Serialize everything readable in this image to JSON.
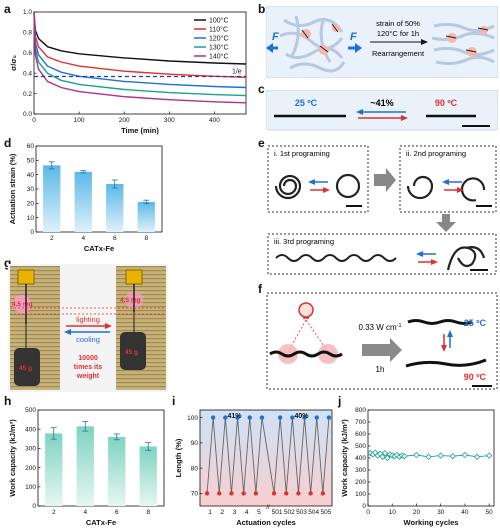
{
  "panel_labels": {
    "a": "a",
    "b": "b",
    "c": "c",
    "d": "d",
    "e": "e",
    "f": "f",
    "g": "g",
    "h": "h",
    "i": "i",
    "j": "j"
  },
  "panel_b": {
    "arrow_left": "F",
    "arrow_right": "F",
    "condition_line1": "strain of 50%",
    "condition_line2": "120°C for 1h",
    "condition_line3": "Rearrangement"
  },
  "panel_c": {
    "temp_left": "25 ºC",
    "percent": "~41%",
    "temp_right": "90 ºC"
  },
  "panel_e": {
    "step1": "i. 1st programing",
    "step2": "ii. 2nd programing",
    "step3": "iii. 3rd programing"
  },
  "panel_f": {
    "intensity": "0.33 W cm",
    "intensity_sup": "-1",
    "time": "1h",
    "temp_top": "25 ºC",
    "temp_bottom": "90 ºC"
  },
  "panel_g": {
    "mass_left": "4.5 mg",
    "mass_right": "4.5 mg",
    "lighting": "lighting",
    "cooling": "cooling",
    "weight_note1": "10000",
    "weight_note2": "times its",
    "weight_note3": "weight",
    "weight_left": "45 g",
    "weight_right": "45 g"
  },
  "colors": {
    "blue": "#1f6fd6",
    "red": "#e03030",
    "teal": "#7fd3c1",
    "sky": "#5bb8e8"
  },
  "chart_data": [
    {
      "id": "a",
      "type": "line",
      "xlabel": "Time (min)",
      "ylabel": "σ/σ₀",
      "xlim": [
        0,
        470
      ],
      "ylim": [
        0,
        1.0
      ],
      "xticks": [
        0,
        100,
        200,
        300,
        400
      ],
      "yticks": [
        0.0,
        0.2,
        0.4,
        0.6,
        0.8,
        1.0
      ],
      "legend_position": "top-right",
      "series": [
        {
          "name": "100°C",
          "color": "#111111",
          "values": [
            [
              0,
              1.0
            ],
            [
              3,
              0.82
            ],
            [
              10,
              0.74
            ],
            [
              30,
              0.66
            ],
            [
              60,
              0.62
            ],
            [
              100,
              0.59
            ],
            [
              200,
              0.55
            ],
            [
              300,
              0.52
            ],
            [
              400,
              0.5
            ],
            [
              470,
              0.49
            ]
          ]
        },
        {
          "name": "110°C",
          "color": "#e03030",
          "values": [
            [
              0,
              1.0
            ],
            [
              3,
              0.76
            ],
            [
              10,
              0.66
            ],
            [
              30,
              0.56
            ],
            [
              60,
              0.51
            ],
            [
              100,
              0.47
            ],
            [
              200,
              0.42
            ],
            [
              300,
              0.39
            ],
            [
              400,
              0.37
            ],
            [
              470,
              0.36
            ]
          ]
        },
        {
          "name": "120°C",
          "color": "#1f6fd6",
          "values": [
            [
              0,
              1.0
            ],
            [
              3,
              0.7
            ],
            [
              10,
              0.58
            ],
            [
              30,
              0.47
            ],
            [
              60,
              0.41
            ],
            [
              100,
              0.37
            ],
            [
              200,
              0.32
            ],
            [
              300,
              0.29
            ],
            [
              400,
              0.27
            ],
            [
              470,
              0.26
            ]
          ]
        },
        {
          "name": "130°C",
          "color": "#17a589",
          "values": [
            [
              0,
              1.0
            ],
            [
              3,
              0.64
            ],
            [
              10,
              0.51
            ],
            [
              30,
              0.4
            ],
            [
              60,
              0.33
            ],
            [
              100,
              0.29
            ],
            [
              200,
              0.24
            ],
            [
              300,
              0.21
            ],
            [
              400,
              0.19
            ],
            [
              470,
              0.18
            ]
          ]
        },
        {
          "name": "140°C",
          "color": "#b0308c",
          "values": [
            [
              0,
              1.0
            ],
            [
              3,
              0.58
            ],
            [
              10,
              0.44
            ],
            [
              30,
              0.32
            ],
            [
              60,
              0.26
            ],
            [
              100,
              0.22
            ],
            [
              200,
              0.17
            ],
            [
              300,
              0.14
            ],
            [
              400,
              0.12
            ],
            [
              470,
              0.11
            ]
          ]
        }
      ],
      "reference_line": {
        "label": "1/e",
        "value": 0.368
      }
    },
    {
      "id": "d",
      "type": "bar",
      "xlabel": "CATx-Fe",
      "ylabel": "Actuation strain (%)",
      "categories": [
        "2",
        "4",
        "6",
        "8"
      ],
      "values": [
        46.5,
        42,
        33.5,
        21
      ],
      "errors": [
        2.5,
        0.8,
        2.8,
        1.2
      ],
      "ylim": [
        0,
        60
      ],
      "yticks": [
        0,
        10,
        20,
        30,
        40,
        50,
        60
      ]
    },
    {
      "id": "h",
      "type": "bar",
      "xlabel": "CATx-Fe",
      "ylabel": "Work capacity (kJ/m³)",
      "categories": [
        "2",
        "4",
        "6",
        "8"
      ],
      "values": [
        378,
        415,
        360,
        310
      ],
      "errors": [
        30,
        25,
        15,
        20
      ],
      "ylim": [
        0,
        500
      ],
      "yticks": [
        0,
        100,
        200,
        300,
        400,
        500
      ]
    },
    {
      "id": "i",
      "type": "line",
      "xlabel": "Actuation cycles",
      "ylabel": "Length (%)",
      "ylim": [
        65,
        103
      ],
      "yticks": [
        70,
        80,
        90,
        100
      ],
      "categories": [
        "1",
        "2",
        "3",
        "4",
        "5",
        "501",
        "502",
        "503",
        "504",
        "505"
      ],
      "high": 100,
      "low": 70,
      "annotations": [
        "41%",
        "40%"
      ]
    },
    {
      "id": "j",
      "type": "scatter",
      "xlabel": "Working cycles",
      "ylabel": "Work capacity (kJ/m³)",
      "xlim": [
        0,
        52
      ],
      "ylim": [
        0,
        800
      ],
      "xticks": [
        0,
        10,
        20,
        30,
        40,
        50
      ],
      "yticks": [
        0,
        100,
        200,
        300,
        400,
        500,
        600,
        700,
        800
      ],
      "x": [
        1,
        2,
        3,
        4,
        5,
        6,
        7,
        8,
        9,
        10,
        11,
        12,
        13,
        14,
        15,
        20,
        25,
        30,
        35,
        40,
        45,
        50
      ],
      "y": [
        440,
        430,
        445,
        420,
        435,
        410,
        440,
        400,
        430,
        420,
        415,
        425,
        410,
        420,
        415,
        425,
        410,
        420,
        415,
        425,
        410,
        420
      ]
    }
  ]
}
